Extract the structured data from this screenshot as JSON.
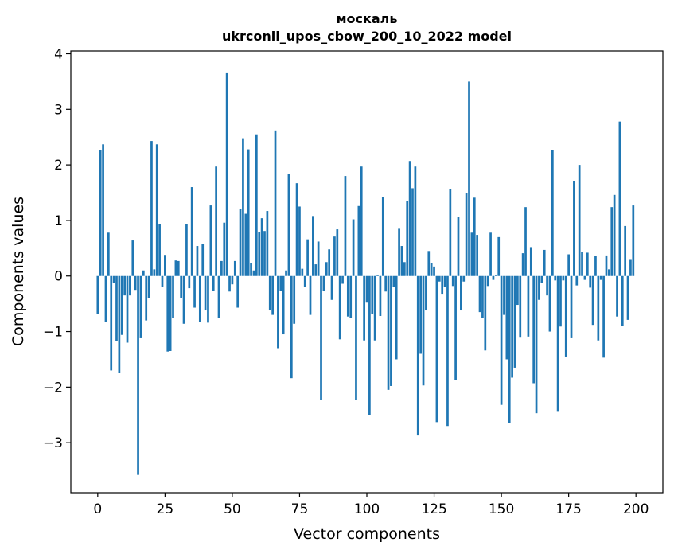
{
  "chart_data": {
    "type": "bar",
    "title": "москаль",
    "subtitle": "ukrconll_upos_cbow_200_10_2022 model",
    "xlabel": "Vector components",
    "ylabel": "Components values",
    "xlim": [
      -10,
      210
    ],
    "ylim": [
      -3.9,
      4.05
    ],
    "xticks": [
      0,
      25,
      50,
      75,
      100,
      125,
      150,
      175,
      200
    ],
    "yticks": [
      -3,
      -2,
      -1,
      0,
      1,
      2,
      3,
      4
    ],
    "ytick_labels": [
      "−3",
      "−2",
      "−1",
      "0",
      "1",
      "2",
      "3",
      "4"
    ],
    "bar_color": "#1f77b4",
    "grid": false,
    "legend": "none",
    "values": [
      -0.68,
      2.27,
      2.37,
      -0.82,
      0.78,
      -1.7,
      -0.13,
      -1.17,
      -1.75,
      -1.06,
      -0.35,
      -1.2,
      -0.35,
      0.64,
      -0.25,
      -3.58,
      -1.12,
      0.1,
      -0.8,
      -0.4,
      2.43,
      0.12,
      2.37,
      0.93,
      -0.2,
      0.38,
      -1.36,
      -1.35,
      -0.75,
      0.28,
      0.27,
      -0.39,
      -0.86,
      0.93,
      -0.22,
      1.6,
      -0.57,
      0.54,
      -0.83,
      0.58,
      -0.62,
      -0.84,
      1.27,
      -0.27,
      1.97,
      -0.76,
      0.27,
      0.96,
      3.65,
      -0.28,
      -0.15,
      0.27,
      -0.57,
      1.21,
      2.48,
      1.12,
      2.28,
      0.23,
      0.1,
      2.55,
      0.79,
      1.04,
      0.81,
      1.17,
      -0.62,
      -0.7,
      2.62,
      -1.3,
      -0.27,
      -1.05,
      0.1,
      1.84,
      -1.84,
      -0.86,
      1.67,
      1.25,
      0.13,
      -0.2,
      0.66,
      -0.7,
      1.08,
      0.21,
      0.62,
      -2.23,
      -0.27,
      0.25,
      0.48,
      -0.43,
      0.71,
      0.84,
      -1.14,
      -0.14,
      1.8,
      -0.73,
      -0.76,
      1.02,
      -2.23,
      1.26,
      1.97,
      -1.16,
      -0.48,
      -2.5,
      -0.68,
      -1.16,
      0.02,
      -0.72,
      1.42,
      -0.28,
      -2.05,
      -1.98,
      -0.19,
      -1.5,
      0.85,
      0.54,
      0.25,
      1.35,
      2.07,
      1.58,
      1.97,
      -2.87,
      -1.4,
      -1.97,
      -0.62,
      0.45,
      0.23,
      0.17,
      -2.63,
      -0.1,
      -0.32,
      -0.2,
      -2.7,
      1.57,
      -0.18,
      -1.87,
      1.06,
      -0.62,
      -0.1,
      1.5,
      3.5,
      0.78,
      1.41,
      0.74,
      -0.65,
      -0.75,
      -1.34,
      -0.18,
      0.78,
      -0.07,
      0.02,
      0.7,
      -2.32,
      -0.7,
      -1.5,
      -2.64,
      -1.83,
      -1.65,
      -0.52,
      -1.11,
      0.41,
      1.24,
      -1.09,
      0.52,
      -1.93,
      -2.47,
      -0.43,
      -0.13,
      0.47,
      -0.35,
      -1.0,
      2.27,
      -0.08,
      -2.43,
      -0.91,
      -0.08,
      -1.45,
      0.39,
      -1.12,
      1.71,
      -0.17,
      2.0,
      0.44,
      -0.07,
      0.42,
      -0.21,
      -0.88,
      0.36,
      -1.16,
      -0.07,
      -1.47,
      0.37,
      0.12,
      1.24,
      1.46,
      -0.73,
      2.78,
      -0.9,
      0.9,
      -0.79,
      0.29,
      1.27
    ]
  }
}
